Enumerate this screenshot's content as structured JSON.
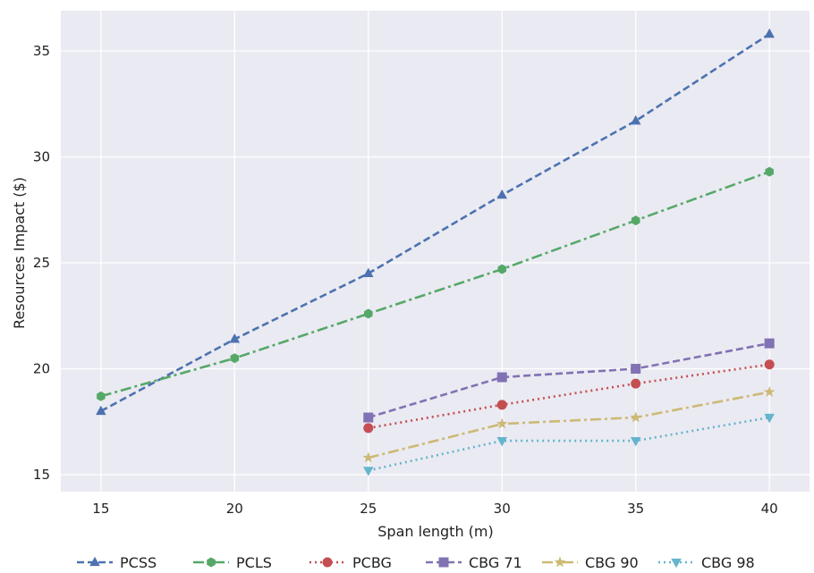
{
  "chart_data": {
    "type": "line",
    "title": "",
    "xlabel": "Span length (m)",
    "ylabel": "Resources Impact ($)",
    "xlim": [
      13.5,
      41.5
    ],
    "ylim": [
      14.2,
      36.9
    ],
    "xticks": [
      15,
      20,
      25,
      30,
      35,
      40
    ],
    "yticks": [
      15,
      20,
      25,
      30,
      35
    ],
    "grid": true,
    "legend_placement": "bottom",
    "background_color": "#eaeaf2",
    "series": [
      {
        "name": "PCSS",
        "x": [
          15,
          20,
          25,
          30,
          35,
          40
        ],
        "y": [
          18.0,
          21.4,
          24.5,
          28.2,
          31.7,
          35.8
        ],
        "color": "#4c72b0",
        "dash": "8,4",
        "marker": "triangle-up",
        "marker_label": "▲"
      },
      {
        "name": "PCLS",
        "x": [
          15,
          20,
          25,
          30,
          35,
          40
        ],
        "y": [
          18.7,
          20.5,
          22.6,
          24.7,
          27.0,
          29.3
        ],
        "color": "#55a868",
        "dash": "12,4,3,4",
        "marker": "hexagon",
        "marker_label": "⬢"
      },
      {
        "name": "PCBG",
        "x": [
          25,
          30,
          35,
          40
        ],
        "y": [
          17.2,
          18.3,
          19.3,
          20.2
        ],
        "color": "#c44e52",
        "dash": "2,4",
        "marker": "circle",
        "marker_label": "●"
      },
      {
        "name": "CBG  71",
        "x": [
          25,
          30,
          35,
          40
        ],
        "y": [
          17.7,
          19.6,
          20.0,
          21.2
        ],
        "color": "#8172b3",
        "dash": "8,4",
        "marker": "square",
        "marker_label": "■"
      },
      {
        "name": "CBG  90",
        "x": [
          25,
          30,
          35,
          40
        ],
        "y": [
          15.8,
          17.4,
          17.7,
          18.9
        ],
        "color": "#ccb974",
        "dash": "12,4,3,4",
        "marker": "star",
        "marker_label": "★"
      },
      {
        "name": "CBG  98",
        "x": [
          25,
          30,
          35,
          40
        ],
        "y": [
          15.2,
          16.6,
          16.6,
          17.7
        ],
        "color": "#64b5cd",
        "dash": "2,4",
        "marker": "triangle-down",
        "marker_label": "▼"
      }
    ]
  }
}
